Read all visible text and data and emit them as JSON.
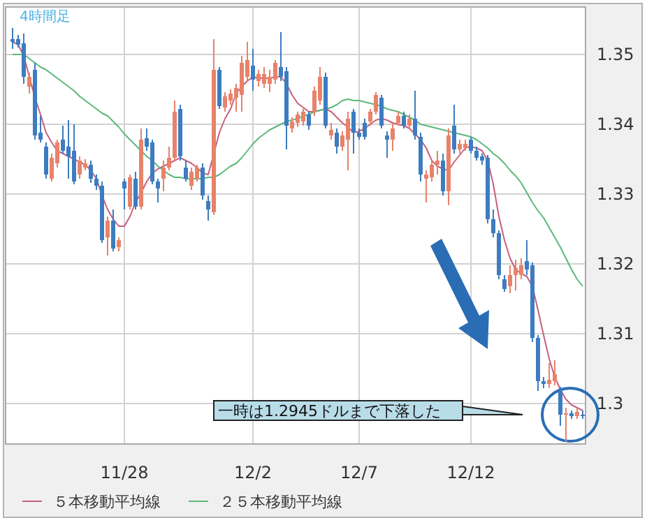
{
  "chart_data": {
    "type": "candlestick",
    "title": "4時間足",
    "categories": [
      null,
      null,
      null,
      null,
      null,
      null,
      null,
      null,
      null,
      null,
      null,
      null,
      null,
      null,
      null,
      null,
      null,
      null,
      null,
      null,
      "11/28",
      null,
      null,
      null,
      null,
      null,
      null,
      null,
      null,
      null,
      null,
      null,
      null,
      null,
      null,
      null,
      null,
      null,
      null,
      null,
      null,
      null,
      null,
      "12/2",
      null,
      null,
      null,
      null,
      null,
      null,
      null,
      null,
      null,
      null,
      null,
      null,
      null,
      null,
      null,
      null,
      null,
      null,
      "12/7",
      null,
      null,
      null,
      null,
      null,
      null,
      null,
      null,
      null,
      null,
      null,
      null,
      null,
      null,
      null,
      null,
      null,
      null,
      null,
      "12/12",
      null,
      null,
      null,
      null,
      null,
      null,
      null,
      null,
      null,
      null,
      null,
      null,
      null,
      null,
      null,
      null,
      null,
      null,
      null,
      null
    ],
    "ohlc": [
      [
        1.3522,
        1.3538,
        1.3508,
        1.3518
      ],
      [
        1.3522,
        1.3528,
        1.351,
        1.3514
      ],
      [
        1.3516,
        1.353,
        1.3458,
        1.3468
      ],
      [
        1.3454,
        1.3474,
        1.3444,
        1.3468
      ],
      [
        1.3478,
        1.3488,
        1.3378,
        1.3384
      ],
      [
        1.3388,
        1.3412,
        1.3374,
        1.3378
      ],
      [
        1.3368,
        1.3374,
        1.3322,
        1.3328
      ],
      [
        1.3322,
        1.3358,
        1.3318,
        1.3352
      ],
      [
        1.3344,
        1.3378,
        1.3338,
        1.3374
      ],
      [
        1.3378,
        1.3398,
        1.3358,
        1.3362
      ],
      [
        1.3368,
        1.3406,
        1.3322,
        1.3354
      ],
      [
        1.3362,
        1.34,
        1.3314,
        1.3318
      ],
      [
        1.3328,
        1.3354,
        1.3322,
        1.3348
      ],
      [
        1.3338,
        1.335,
        1.3334,
        1.3344
      ],
      [
        1.3342,
        1.3348,
        1.3316,
        1.3322
      ],
      [
        1.3322,
        1.3328,
        1.3306,
        1.3312
      ],
      [
        1.3312,
        1.3318,
        1.323,
        1.3234
      ],
      [
        1.3238,
        1.3268,
        1.3212,
        1.3262
      ],
      [
        1.3262,
        1.3278,
        1.3218,
        1.3222
      ],
      [
        1.3224,
        1.3238,
        1.3218,
        1.3234
      ],
      [
        1.3318,
        1.3322,
        1.3278,
        1.3308
      ],
      [
        1.3282,
        1.3328,
        1.3278,
        1.3324
      ],
      [
        1.3322,
        1.3332,
        1.3278,
        1.3282
      ],
      [
        1.3282,
        1.3394,
        1.3278,
        1.3378
      ],
      [
        1.338,
        1.3394,
        1.3362,
        1.3368
      ],
      [
        1.3374,
        1.3378,
        1.3314,
        1.3318
      ],
      [
        1.3318,
        1.3322,
        1.3288,
        1.3308
      ],
      [
        1.3322,
        1.3348,
        1.3304,
        1.3338
      ],
      [
        1.3338,
        1.3368,
        1.3334,
        1.3352
      ],
      [
        1.3352,
        1.3434,
        1.3348,
        1.3418
      ],
      [
        1.3422,
        1.3428,
        1.3348,
        1.3354
      ],
      [
        1.3338,
        1.3348,
        1.3318,
        1.3322
      ],
      [
        1.3312,
        1.3338,
        1.3306,
        1.3332
      ],
      [
        1.3322,
        1.3342,
        1.3318,
        1.3338
      ],
      [
        1.3338,
        1.3344,
        1.3292,
        1.3298
      ],
      [
        1.329,
        1.3298,
        1.3262,
        1.3278
      ],
      [
        1.3274,
        1.3522,
        1.327,
        1.3478
      ],
      [
        1.3478,
        1.3482,
        1.3422,
        1.3426
      ],
      [
        1.3424,
        1.3446,
        1.3418,
        1.344
      ],
      [
        1.3434,
        1.345,
        1.3428,
        1.3444
      ],
      [
        1.3438,
        1.3458,
        1.3418,
        1.3452
      ],
      [
        1.3442,
        1.3498,
        1.3418,
        1.3488
      ],
      [
        1.3468,
        1.3518,
        1.3462,
        1.3492
      ],
      [
        1.3484,
        1.3508,
        1.3448,
        1.3464
      ],
      [
        1.3462,
        1.3478,
        1.3454,
        1.3472
      ],
      [
        1.3458,
        1.3482,
        1.3452,
        1.3472
      ],
      [
        1.3458,
        1.3478,
        1.3446,
        1.3468
      ],
      [
        1.3464,
        1.3492,
        1.3458,
        1.3488
      ],
      [
        1.3482,
        1.3532,
        1.3462,
        1.3468
      ],
      [
        1.3476,
        1.3482,
        1.3364,
        1.3398
      ],
      [
        1.3394,
        1.341,
        1.3388,
        1.3404
      ],
      [
        1.3402,
        1.3418,
        1.3396,
        1.3414
      ],
      [
        1.3404,
        1.3422,
        1.3398,
        1.3418
      ],
      [
        1.3414,
        1.3418,
        1.3392,
        1.3398
      ],
      [
        1.3418,
        1.3454,
        1.3412,
        1.3448
      ],
      [
        1.3434,
        1.3482,
        1.3428,
        1.3468
      ],
      [
        1.3468,
        1.3474,
        1.3394,
        1.3398
      ],
      [
        1.3384,
        1.3402,
        1.3378,
        1.3392
      ],
      [
        1.3388,
        1.3394,
        1.3358,
        1.3368
      ],
      [
        1.3368,
        1.339,
        1.3362,
        1.3384
      ],
      [
        1.3378,
        1.3418,
        1.3334,
        1.3408
      ],
      [
        1.3418,
        1.3422,
        1.3358,
        1.3388
      ],
      [
        1.3388,
        1.3394,
        1.3378,
        1.3382
      ],
      [
        1.3402,
        1.3408,
        1.3378,
        1.3382
      ],
      [
        1.3404,
        1.3422,
        1.3398,
        1.3418
      ],
      [
        1.3418,
        1.3446,
        1.3414,
        1.3442
      ],
      [
        1.3438,
        1.3442,
        1.3394,
        1.3398
      ],
      [
        1.3384,
        1.339,
        1.3352,
        1.3378
      ],
      [
        1.3378,
        1.3402,
        1.3362,
        1.3394
      ],
      [
        1.3402,
        1.3418,
        1.3398,
        1.3412
      ],
      [
        1.3412,
        1.3418,
        1.3394,
        1.3398
      ],
      [
        1.3398,
        1.3414,
        1.3394,
        1.3408
      ],
      [
        1.3408,
        1.3448,
        1.3378,
        1.3384
      ],
      [
        1.3382,
        1.3388,
        1.3318,
        1.3328
      ],
      [
        1.3322,
        1.3334,
        1.3288,
        1.3328
      ],
      [
        1.3324,
        1.3348,
        1.3318,
        1.3342
      ],
      [
        1.3342,
        1.3362,
        1.3328,
        1.3348
      ],
      [
        1.3348,
        1.3358,
        1.3298,
        1.3304
      ],
      [
        1.3304,
        1.3394,
        1.3284,
        1.3384
      ],
      [
        1.3398,
        1.3428,
        1.3358,
        1.3364
      ],
      [
        1.3364,
        1.3378,
        1.3358,
        1.3372
      ],
      [
        1.3366,
        1.3378,
        1.3362,
        1.3372
      ],
      [
        1.3378,
        1.3382,
        1.3358,
        1.3362
      ],
      [
        1.3362,
        1.3368,
        1.3348,
        1.3352
      ],
      [
        1.3354,
        1.3358,
        1.3342,
        1.3348
      ],
      [
        1.3352,
        1.3356,
        1.3258,
        1.3264
      ],
      [
        1.3264,
        1.3278,
        1.3238,
        1.3244
      ],
      [
        1.3244,
        1.3248,
        1.3178,
        1.3184
      ],
      [
        1.3178,
        1.3184,
        1.316,
        1.3164
      ],
      [
        1.3168,
        1.3198,
        1.3158,
        1.3184
      ],
      [
        1.3184,
        1.3206,
        1.3162,
        1.3194
      ],
      [
        1.3184,
        1.3208,
        1.3178,
        1.3198
      ],
      [
        1.3204,
        1.3234,
        1.3184,
        1.3192
      ],
      [
        1.3198,
        1.3202,
        1.3088,
        1.3094
      ],
      [
        1.3094,
        1.3098,
        1.3018,
        1.3032
      ],
      [
        1.3032,
        1.3038,
        1.3022,
        1.3028
      ],
      [
        1.3028,
        1.3058,
        1.3022,
        1.3034
      ],
      [
        1.3032,
        1.3062,
        1.3026,
        1.3042
      ],
      [
        1.3018,
        1.3024,
        1.2968,
        1.2984
      ],
      [
        1.2984,
        1.2994,
        1.2945,
        1.2986
      ],
      [
        1.2986,
        1.299,
        1.2978,
        1.2982
      ],
      [
        1.2982,
        1.2994,
        1.2978,
        1.2988
      ],
      [
        1.2984,
        1.299,
        1.2978,
        1.2982
      ]
    ],
    "colors": [
      "#3d7cc0",
      "#3d7cc0",
      "#3d7cc0",
      "#e8826a",
      "#3d7cc0",
      "#3d7cc0",
      "#3d7cc0",
      "#e8826a",
      "#e8826a",
      "#3d7cc0",
      "#3d7cc0",
      "#3d7cc0",
      "#e8826a",
      "#e8826a",
      "#3d7cc0",
      "#3d7cc0",
      "#3d7cc0",
      "#e8826a",
      "#3d7cc0",
      "#e8826a",
      "#3d7cc0",
      "#e8826a",
      "#3d7cc0",
      "#e8826a",
      "#3d7cc0",
      "#3d7cc0",
      "#3d7cc0",
      "#e8826a",
      "#e8826a",
      "#e8826a",
      "#3d7cc0",
      "#3d7cc0",
      "#e8826a",
      "#e8826a",
      "#3d7cc0",
      "#3d7cc0",
      "#e8826a",
      "#3d7cc0",
      "#e8826a",
      "#e8826a",
      "#e8826a",
      "#e8826a",
      "#e8826a",
      "#3d7cc0",
      "#e8826a",
      "#e8826a",
      "#e8826a",
      "#e8826a",
      "#3d7cc0",
      "#3d7cc0",
      "#e8826a",
      "#e8826a",
      "#e8826a",
      "#3d7cc0",
      "#e8826a",
      "#e8826a",
      "#3d7cc0",
      "#e8826a",
      "#3d7cc0",
      "#e8826a",
      "#e8826a",
      "#3d7cc0",
      "#3d7cc0",
      "#3d7cc0",
      "#e8826a",
      "#e8826a",
      "#3d7cc0",
      "#3d7cc0",
      "#e8826a",
      "#e8826a",
      "#3d7cc0",
      "#e8826a",
      "#3d7cc0",
      "#3d7cc0",
      "#e8826a",
      "#e8826a",
      "#e8826a",
      "#3d7cc0",
      "#e8826a",
      "#3d7cc0",
      "#e8826a",
      "#e8826a",
      "#3d7cc0",
      "#3d7cc0",
      "#3d7cc0",
      "#3d7cc0",
      "#3d7cc0",
      "#3d7cc0",
      "#3d7cc0",
      "#e8826a",
      "#e8826a",
      "#e8826a",
      "#3d7cc0",
      "#3d7cc0",
      "#3d7cc0",
      "#3d7cc0",
      "#e8826a",
      "#e8826a",
      "#3d7cc0",
      "#e8826a",
      "#3d7cc0",
      "#e8826a",
      "#3d7cc0"
    ],
    "series": [
      {
        "type": "line",
        "name": "５本移動平均線",
        "color": "#c8607a",
        "values": [
          1.3518,
          1.3514,
          1.3498,
          1.3468,
          1.3438,
          1.3414,
          1.3388,
          1.3374,
          1.3362,
          1.3358,
          1.3354,
          1.335,
          1.3346,
          1.3342,
          1.3334,
          1.3322,
          1.3298,
          1.3278,
          1.3264,
          1.3254,
          1.3254,
          1.3268,
          1.3288,
          1.3302,
          1.3318,
          1.333,
          1.3336,
          1.334,
          1.3344,
          1.3348,
          1.3352,
          1.3348,
          1.3344,
          1.3338,
          1.333,
          1.3328,
          1.3358,
          1.3388,
          1.3408,
          1.3422,
          1.3444,
          1.3454,
          1.3462,
          1.3468,
          1.3466,
          1.3466,
          1.3466,
          1.3468,
          1.3468,
          1.3458,
          1.3442,
          1.343,
          1.3424,
          1.3418,
          1.3418,
          1.342,
          1.3422,
          1.3418,
          1.341,
          1.3402,
          1.3396,
          1.3388,
          1.339,
          1.3394,
          1.34,
          1.3406,
          1.3408,
          1.3406,
          1.3402,
          1.34,
          1.3398,
          1.3394,
          1.3386,
          1.3378,
          1.3366,
          1.3348,
          1.334,
          1.3336,
          1.3334,
          1.3346,
          1.3356,
          1.3366,
          1.3368,
          1.3366,
          1.3362,
          1.3348,
          1.3314,
          1.3268,
          1.3234,
          1.3208,
          1.3192,
          1.3186,
          1.3182,
          1.3168,
          1.3134,
          1.3098,
          1.3064,
          1.3038,
          1.302,
          1.3006,
          1.2998,
          1.2994,
          1.299
        ]
      },
      {
        "type": "line",
        "name": "２５本移動平均線",
        "color": "#5cb87a",
        "values": [
          1.35,
          1.35,
          1.35,
          1.3494,
          1.3488,
          1.3482,
          1.3478,
          1.3472,
          1.3466,
          1.346,
          1.3454,
          1.3448,
          1.344,
          1.3434,
          1.3428,
          1.3422,
          1.3416,
          1.3412,
          1.3404,
          1.3396,
          1.3386,
          1.3378,
          1.337,
          1.3362,
          1.3354,
          1.3348,
          1.334,
          1.3334,
          1.3328,
          1.3324,
          1.3324,
          1.3322,
          1.3322,
          1.3322,
          1.3322,
          1.3324,
          1.3324,
          1.3328,
          1.3334,
          1.334,
          1.3344,
          1.3352,
          1.3362,
          1.3372,
          1.338,
          1.3386,
          1.3392,
          1.3396,
          1.34,
          1.3404,
          1.3406,
          1.3408,
          1.3412,
          1.3414,
          1.3418,
          1.342,
          1.3422,
          1.3424,
          1.3428,
          1.3434,
          1.3436,
          1.3434,
          1.3434,
          1.3432,
          1.343,
          1.3428,
          1.3426,
          1.3422,
          1.342,
          1.3418,
          1.3414,
          1.341,
          1.3406,
          1.34,
          1.3398,
          1.3396,
          1.3394,
          1.3392,
          1.339,
          1.3388,
          1.3386,
          1.3384,
          1.3382,
          1.3378,
          1.3372,
          1.3366,
          1.3358,
          1.3352,
          1.3344,
          1.3334,
          1.3326,
          1.3316,
          1.3302,
          1.3288,
          1.3276,
          1.3266,
          1.3252,
          1.3238,
          1.3224,
          1.3208,
          1.3192,
          1.3178,
          1.3168
        ]
      }
    ],
    "ylim": [
      1.2942,
      1.3568
    ],
    "yticks": [
      1.3,
      1.31,
      1.32,
      1.33,
      1.34,
      1.35
    ],
    "grid": true,
    "legend": "bottom",
    "annotations": [
      "一時は1.2945ドルまで下落した"
    ]
  }
}
